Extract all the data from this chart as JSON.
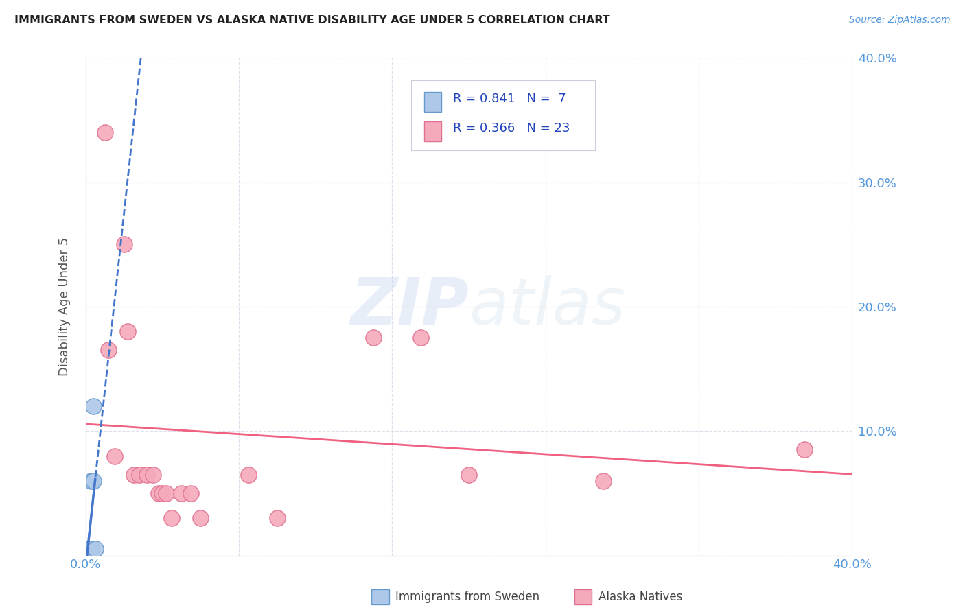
{
  "title": "IMMIGRANTS FROM SWEDEN VS ALASKA NATIVE DISABILITY AGE UNDER 5 CORRELATION CHART",
  "source": "Source: ZipAtlas.com",
  "ylabel_label": "Disability Age Under 5",
  "watermark_zip": "ZIP",
  "watermark_atlas": "atlas",
  "xmin": 0.0,
  "xmax": 0.4,
  "ymin": 0.0,
  "ymax": 0.4,
  "sweden_color": "#adc8e8",
  "alaska_color": "#f5aabb",
  "sweden_edge": "#6699cc",
  "alaska_edge": "#e07090",
  "trend_sweden_color": "#4477cc",
  "trend_alaska_color": "#f06080",
  "legend_r_sweden": "R = 0.841",
  "legend_n_sweden": "N =  7",
  "legend_r_alaska": "R = 0.366",
  "legend_n_alaska": "N = 23",
  "sweden_points": [
    [
      0.002,
      0.005
    ],
    [
      0.002,
      0.005
    ],
    [
      0.003,
      0.005
    ],
    [
      0.003,
      0.06
    ],
    [
      0.004,
      0.06
    ],
    [
      0.004,
      0.12
    ],
    [
      0.005,
      0.005
    ]
  ],
  "alaska_points": [
    [
      0.01,
      0.34
    ],
    [
      0.012,
      0.165
    ],
    [
      0.015,
      0.08
    ],
    [
      0.02,
      0.25
    ],
    [
      0.022,
      0.18
    ],
    [
      0.025,
      0.065
    ],
    [
      0.028,
      0.065
    ],
    [
      0.032,
      0.065
    ],
    [
      0.035,
      0.065
    ],
    [
      0.038,
      0.05
    ],
    [
      0.04,
      0.05
    ],
    [
      0.042,
      0.05
    ],
    [
      0.045,
      0.03
    ],
    [
      0.05,
      0.05
    ],
    [
      0.055,
      0.05
    ],
    [
      0.06,
      0.03
    ],
    [
      0.085,
      0.065
    ],
    [
      0.1,
      0.03
    ],
    [
      0.15,
      0.175
    ],
    [
      0.175,
      0.175
    ],
    [
      0.2,
      0.065
    ],
    [
      0.27,
      0.06
    ],
    [
      0.375,
      0.085
    ]
  ],
  "grid_color": "#e0e0ec",
  "background_color": "#ffffff",
  "title_color": "#222222",
  "axis_label_color": "#555555",
  "tick_label_color": "#5599dd",
  "legend_text_color": "#2244bb"
}
